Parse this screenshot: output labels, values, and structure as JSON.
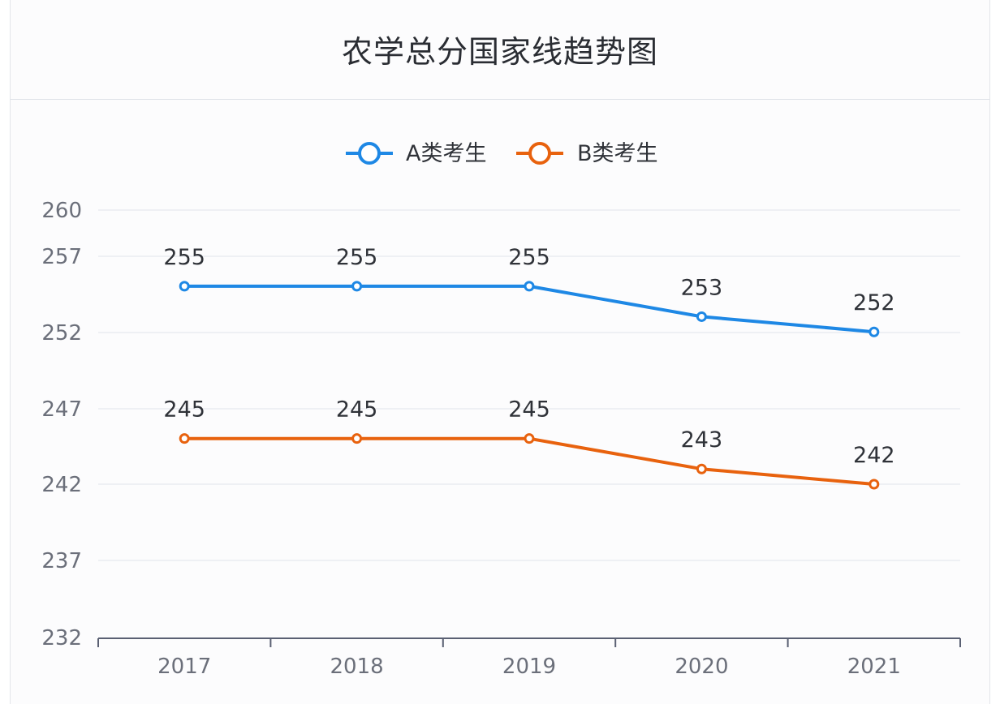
{
  "title": "农学总分国家线趋势图",
  "chart_data": {
    "type": "line",
    "title": "农学总分国家线趋势图",
    "categories": [
      "2017",
      "2018",
      "2019",
      "2020",
      "2021"
    ],
    "series": [
      {
        "name": "A类考生",
        "color": "#1e88e5",
        "values": [
          255,
          255,
          255,
          253,
          252
        ]
      },
      {
        "name": "B类考生",
        "color": "#e8620e",
        "values": [
          245,
          245,
          245,
          243,
          242
        ]
      }
    ],
    "yticks": [
      "260",
      "257",
      "252",
      "247",
      "242",
      "237",
      "232"
    ],
    "ylim": [
      232,
      260
    ],
    "grid": true,
    "legend": "top-center",
    "data_labels": true
  }
}
